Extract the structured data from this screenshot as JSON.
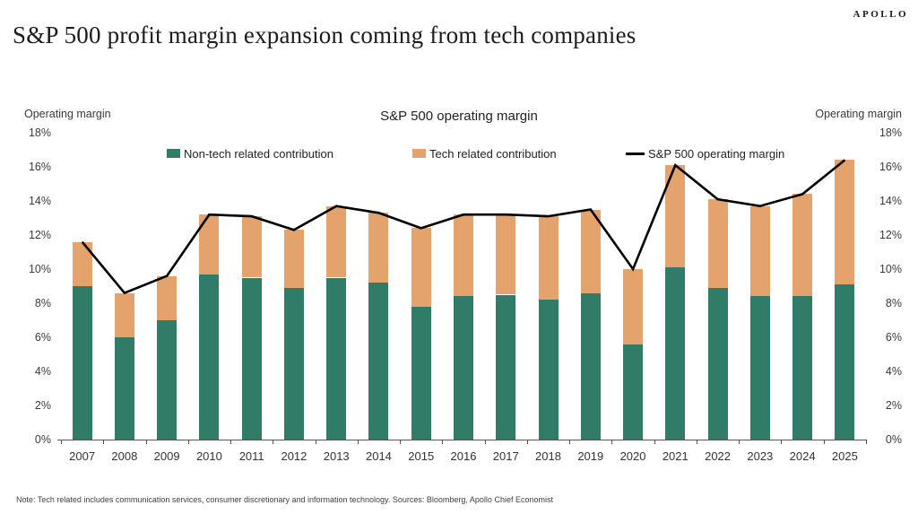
{
  "header": {
    "title": "S&P 500 profit margin expansion coming from tech companies",
    "brand": "APOLLO"
  },
  "chart_data": {
    "type": "bar",
    "subtype": "stacked-bars-with-line-overlay",
    "title": "S&P 500 operating margin",
    "axis_title_left": "Operating margin",
    "axis_title_right": "Operating margin",
    "categories": [
      "2007",
      "2008",
      "2009",
      "2010",
      "2011",
      "2012",
      "2013",
      "2014",
      "2015",
      "2016",
      "2017",
      "2018",
      "2019",
      "2020",
      "2021",
      "2022",
      "2023",
      "2024",
      "2025"
    ],
    "series": [
      {
        "name": "Non-tech related contribution",
        "kind": "bar",
        "color": "#317C68",
        "values": [
          9.0,
          6.0,
          7.0,
          9.7,
          9.5,
          8.9,
          9.5,
          9.2,
          7.8,
          8.4,
          8.5,
          8.2,
          8.6,
          5.6,
          10.1,
          8.9,
          8.4,
          8.4,
          9.1
        ]
      },
      {
        "name": "Tech related contribution",
        "kind": "bar",
        "color": "#E4A26C",
        "values": [
          2.6,
          2.6,
          2.6,
          3.5,
          3.6,
          3.4,
          4.2,
          4.1,
          4.6,
          4.8,
          4.7,
          4.9,
          4.9,
          4.4,
          6.0,
          5.2,
          5.3,
          6.0,
          7.3
        ]
      },
      {
        "name": "S&P 500 operating margin",
        "kind": "line",
        "color": "#000000",
        "values": [
          11.6,
          8.6,
          9.6,
          13.2,
          13.1,
          12.3,
          13.7,
          13.3,
          12.4,
          13.2,
          13.2,
          13.1,
          13.5,
          10.0,
          16.1,
          14.1,
          13.7,
          14.4,
          16.4
        ]
      }
    ],
    "ylim": [
      0,
      18
    ],
    "ytick_step": 2,
    "ytick_suffix": "%",
    "grid": false,
    "legend_position": "top"
  },
  "footer": {
    "note": "Note: Tech related includes communication services, consumer discretionary and information technology. Sources: Bloomberg, Apollo Chief Economist"
  }
}
